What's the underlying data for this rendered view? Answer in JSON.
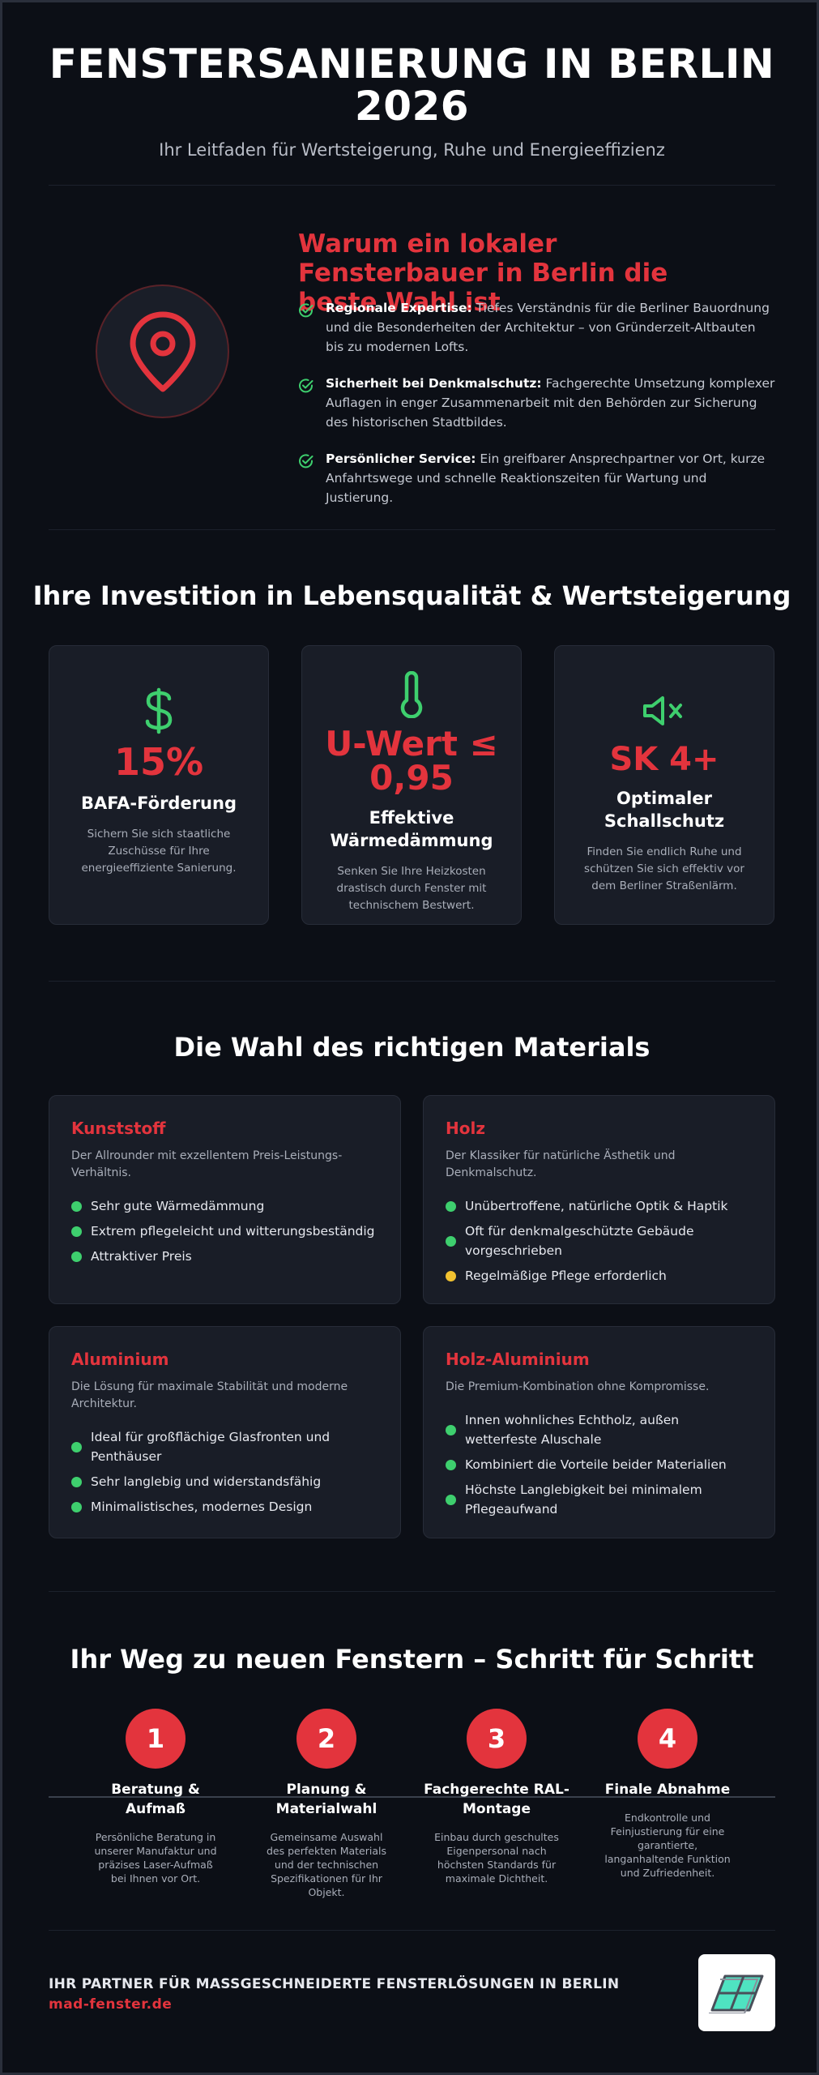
{
  "header": {
    "title": "FENSTERSANIERUNG IN BERLIN 2026",
    "subtitle": "Ihr Leitfaden für Wertsteigerung, Ruhe und Energieeffizienz"
  },
  "local": {
    "title": "Warum ein lokaler Fensterbauer in Berlin die beste Wahl ist",
    "icon": "map-pin-icon",
    "items": [
      {
        "bold": "Regionale Expertise:",
        "text": " Tiefes Verständnis für die Berliner Bauordnung und die Besonderheiten der Architektur – von Gründerzeit-Altbauten bis zu modernen Lofts."
      },
      {
        "bold": "Sicherheit bei Denkmalschutz:",
        "text": " Fachgerechte Umsetzung komplexer Auflagen in enger Zusammenarbeit mit den Behörden zur Sicherung des historischen Stadtbildes."
      },
      {
        "bold": "Persönlicher Service:",
        "text": " Ein greifbarer Ansprechpartner vor Ort, kurze Anfahrtswege und schnelle Reaktionszeiten für Wartung und Justierung."
      }
    ]
  },
  "investment": {
    "title": "Ihre Investition in Lebensqualität & Wertsteigerung",
    "cards": [
      {
        "icon": "dollar-icon",
        "value": "15%",
        "label": "BAFA-Förderung",
        "desc": "Sichern Sie sich staatliche Zuschüsse für Ihre energieeffiziente Sanierung."
      },
      {
        "icon": "thermometer-icon",
        "value": "U-Wert ≤ 0,95",
        "label": "Effektive Wärmedämmung",
        "desc": "Senken Sie Ihre Heizkosten drastisch durch Fenster mit technischem Bestwert."
      },
      {
        "icon": "speaker-mute-icon",
        "value": "SK 4+",
        "label": "Optimaler Schallschutz",
        "desc": "Finden Sie endlich Ruhe und schützen Sie sich effektiv vor dem Berliner Straßenlärm."
      }
    ]
  },
  "materials": {
    "title": "Die Wahl des richtigen Materials",
    "cards": [
      {
        "name": "Kunststoff",
        "desc": "Der Allrounder mit exzellentem Preis-Leistungs-Verhältnis.",
        "items": [
          {
            "text": "Sehr gute Wärmedämmung",
            "color": "#3ecf6e"
          },
          {
            "text": "Extrem pflegeleicht und witterungsbeständig",
            "color": "#3ecf6e"
          },
          {
            "text": "Attraktiver Preis",
            "color": "#3ecf6e"
          }
        ]
      },
      {
        "name": "Holz",
        "desc": "Der Klassiker für natürliche Ästhetik und Denkmalschutz.",
        "items": [
          {
            "text": "Unübertroffene, natürliche Optik & Haptik",
            "color": "#3ecf6e"
          },
          {
            "text": "Oft für denkmalgeschützte Gebäude vorgeschrieben",
            "color": "#3ecf6e"
          },
          {
            "text": "Regelmäßige Pflege erforderlich",
            "color": "#f2c230"
          }
        ]
      },
      {
        "name": "Aluminium",
        "desc": "Die Lösung für maximale Stabilität und moderne Architektur.",
        "items": [
          {
            "text": "Ideal für großflächige Glasfronten und Penthäuser",
            "color": "#3ecf6e"
          },
          {
            "text": "Sehr langlebig und widerstandsfähig",
            "color": "#3ecf6e"
          },
          {
            "text": "Minimalistisches, modernes Design",
            "color": "#3ecf6e"
          }
        ]
      },
      {
        "name": "Holz-Aluminium",
        "desc": "Die Premium-Kombination ohne Kompromisse.",
        "items": [
          {
            "text": "Innen wohnliches Echtholz, außen wetterfeste Aluschale",
            "color": "#3ecf6e"
          },
          {
            "text": "Kombiniert die Vorteile beider Materialien",
            "color": "#3ecf6e"
          },
          {
            "text": "Höchste Langlebigkeit bei minimalem Pflegeaufwand",
            "color": "#3ecf6e"
          }
        ]
      }
    ]
  },
  "steps": {
    "title": "Ihr Weg zu neuen Fenstern – Schritt für Schritt",
    "items": [
      {
        "num": "1",
        "title": "Beratung & Aufmaß",
        "desc": "Persönliche Beratung in unserer Manufaktur und präzises Laser-Aufmaß bei Ihnen vor Ort."
      },
      {
        "num": "2",
        "title": "Planung & Materialwahl",
        "desc": "Gemeinsame Auswahl des perfekten Materials und der technischen Spezifikationen für Ihr Objekt."
      },
      {
        "num": "3",
        "title": "Fachgerechte RAL-Montage",
        "desc": "Einbau durch geschultes Eigenpersonal nach höchsten Standards für maximale Dichtheit."
      },
      {
        "num": "4",
        "title": "Finale Abnahme",
        "desc": "Endkontrolle und Feinjustierung für eine garantierte, langanhaltende Funktion und Zufriedenheit."
      }
    ]
  },
  "footer": {
    "title": "IHR PARTNER FÜR MASSGESCHNEIDERTE FENSTERLÖSUNGEN IN BERLIN",
    "link": "mad-fenster.de",
    "logo_icon": "window-logo-icon"
  },
  "colors": {
    "accent_red": "#e3343d",
    "check_green": "#3ecf6e",
    "warn_yellow": "#f2c230",
    "background": "#0c0f16",
    "card": "#191d27"
  }
}
